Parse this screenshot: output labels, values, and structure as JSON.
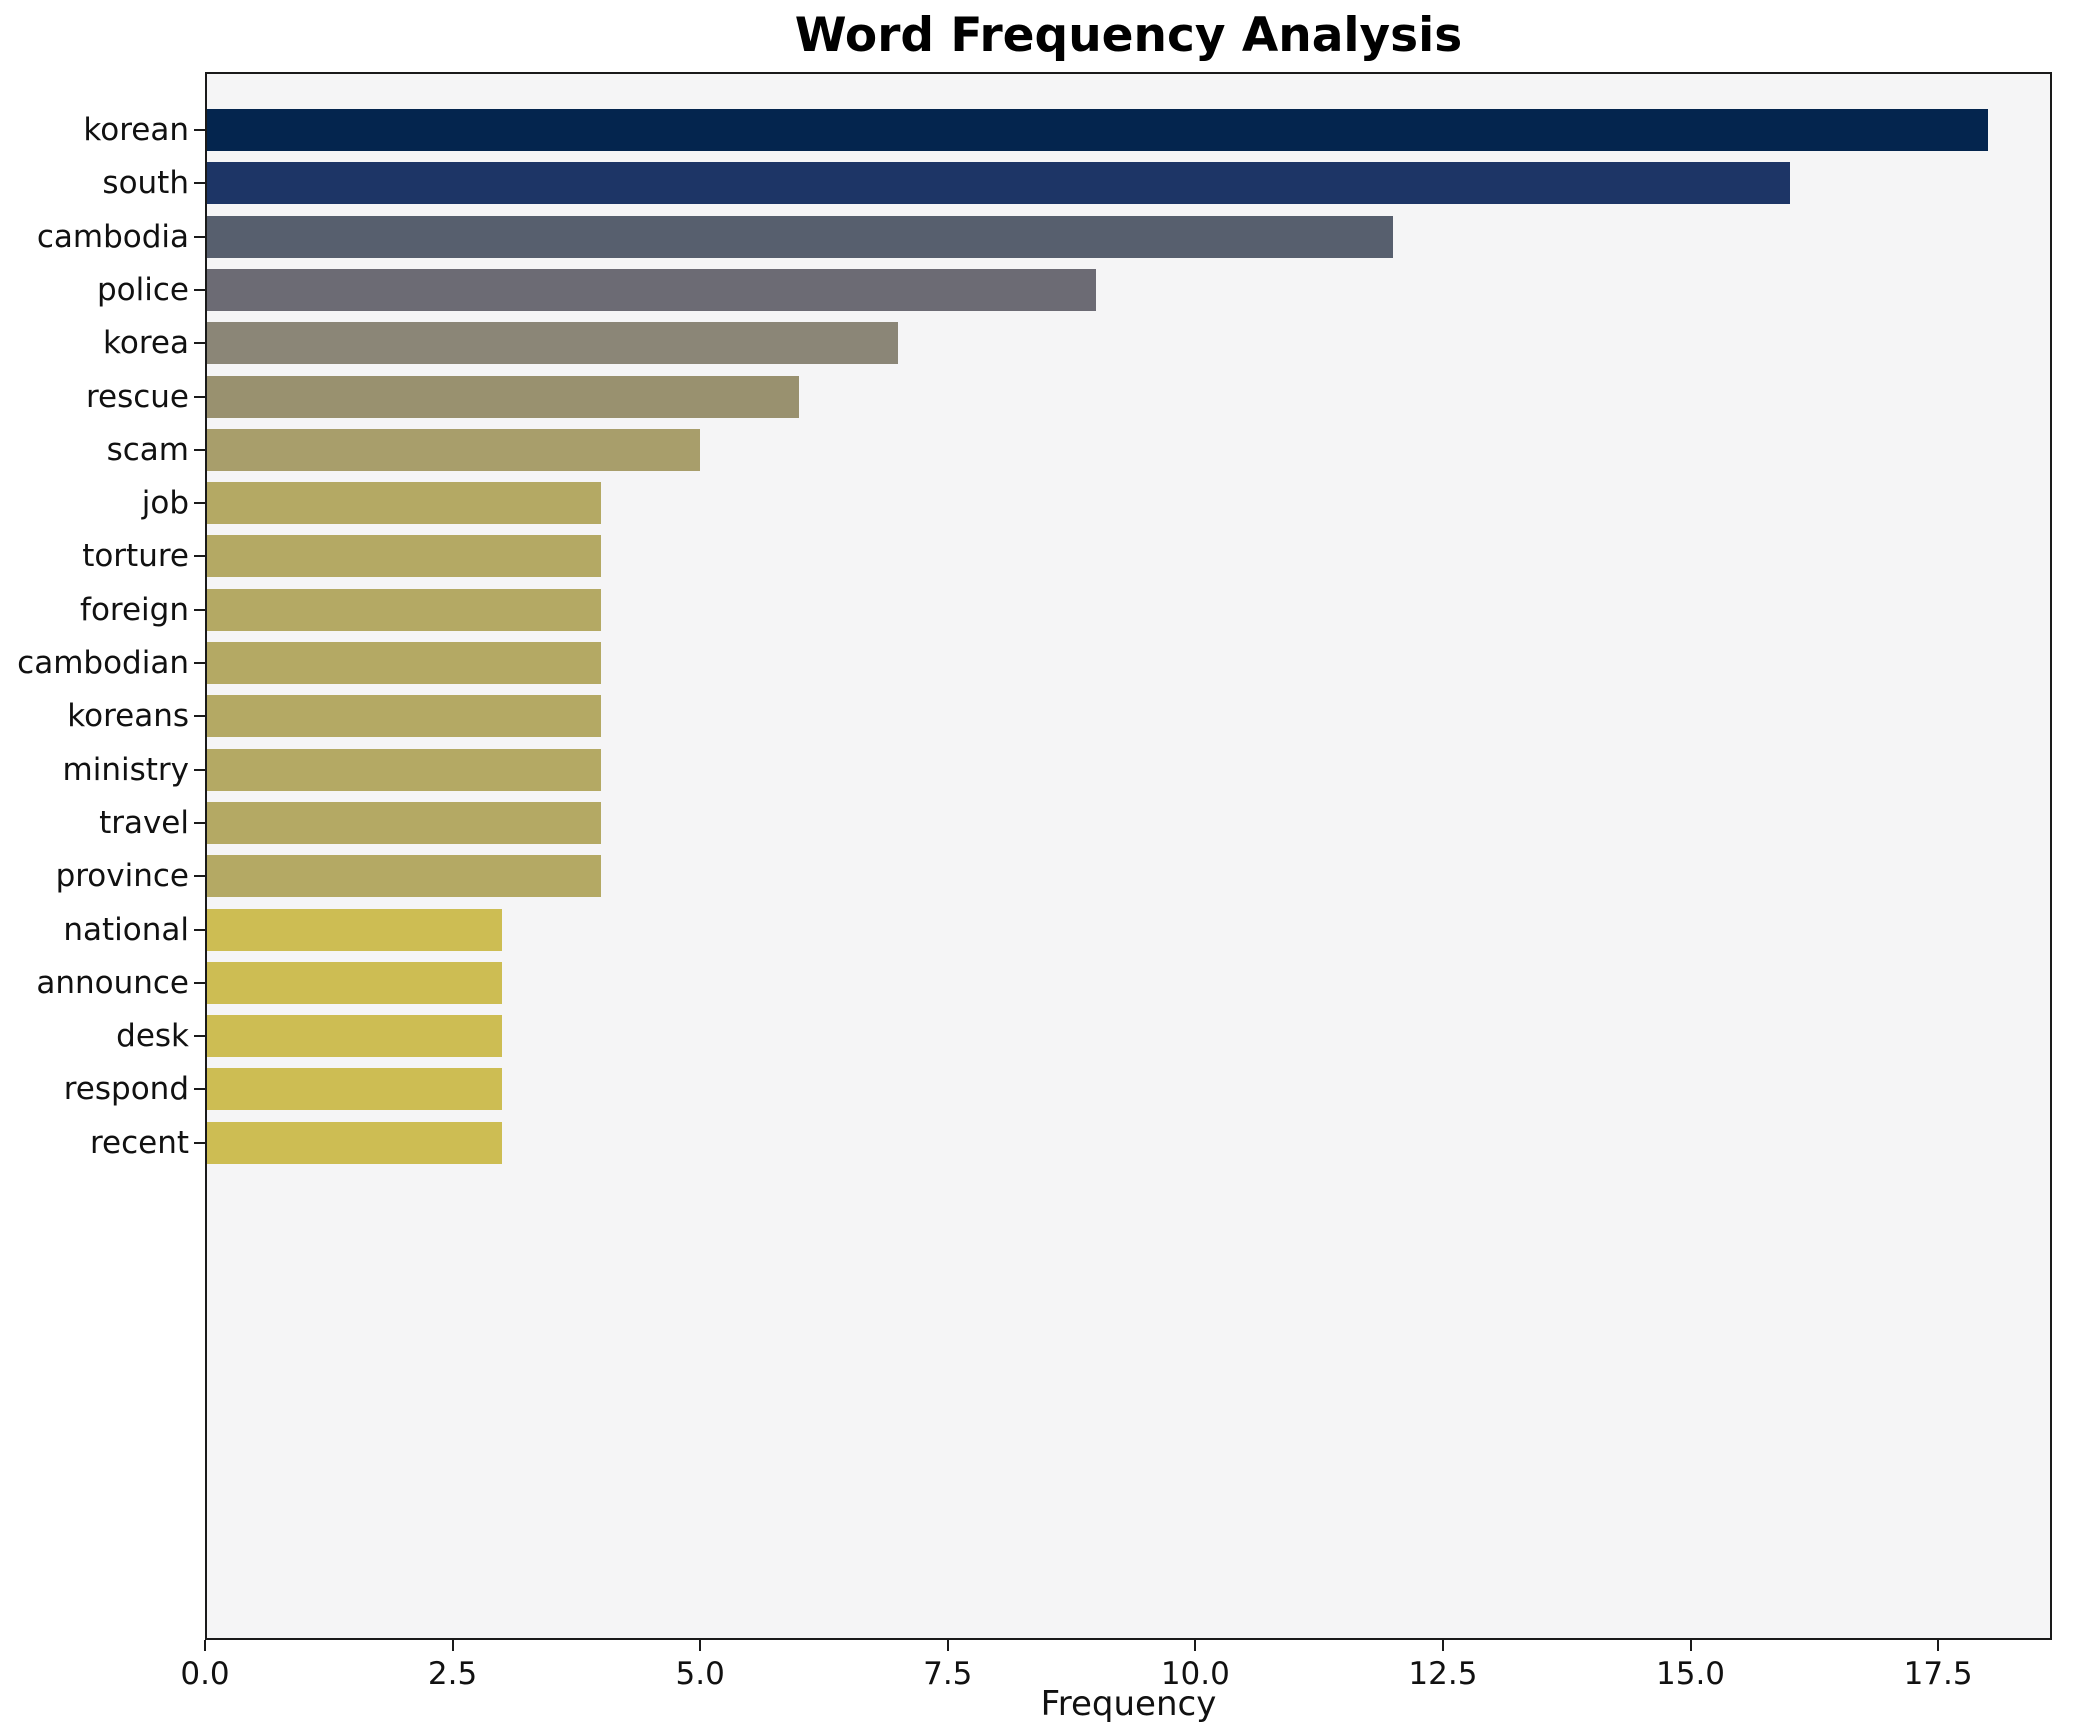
{
  "chart_data": {
    "type": "bar",
    "orientation": "horizontal",
    "title": "Word Frequency Analysis",
    "xlabel": "Frequency",
    "ylabel": "",
    "categories": [
      "korean",
      "south",
      "cambodia",
      "police",
      "korea",
      "rescue",
      "scam",
      "job",
      "torture",
      "foreign",
      "cambodian",
      "koreans",
      "ministry",
      "travel",
      "province",
      "national",
      "announce",
      "desk",
      "respond",
      "recent"
    ],
    "values": [
      18,
      16,
      12,
      9,
      7,
      6,
      5,
      4,
      4,
      4,
      4,
      4,
      4,
      4,
      4,
      3,
      3,
      3,
      3,
      3
    ],
    "bar_colors": [
      "#04254e",
      "#1d3566",
      "#575f6e",
      "#6c6b74",
      "#8b8677",
      "#99916f",
      "#a89e6b",
      "#b4a964",
      "#b4a964",
      "#b4a964",
      "#b4a964",
      "#b4a964",
      "#b4a964",
      "#b4a964",
      "#b4a964",
      "#cdbd53",
      "#cdbd53",
      "#cdbd53",
      "#cdbd53",
      "#cdbd53"
    ],
    "xlim": [
      0,
      18.65
    ],
    "xticks": [
      0.0,
      2.5,
      5.0,
      7.5,
      10.0,
      12.5,
      15.0,
      17.5
    ],
    "xtick_labels": [
      "0.0",
      "2.5",
      "5.0",
      "7.5",
      "10.0",
      "12.5",
      "15.0",
      "17.5"
    ],
    "grid": false,
    "legend": null,
    "colors": {
      "plot_bg": "#f5f5f6",
      "figure_bg": "#ffffff",
      "spine": "#1a1a1a"
    }
  }
}
